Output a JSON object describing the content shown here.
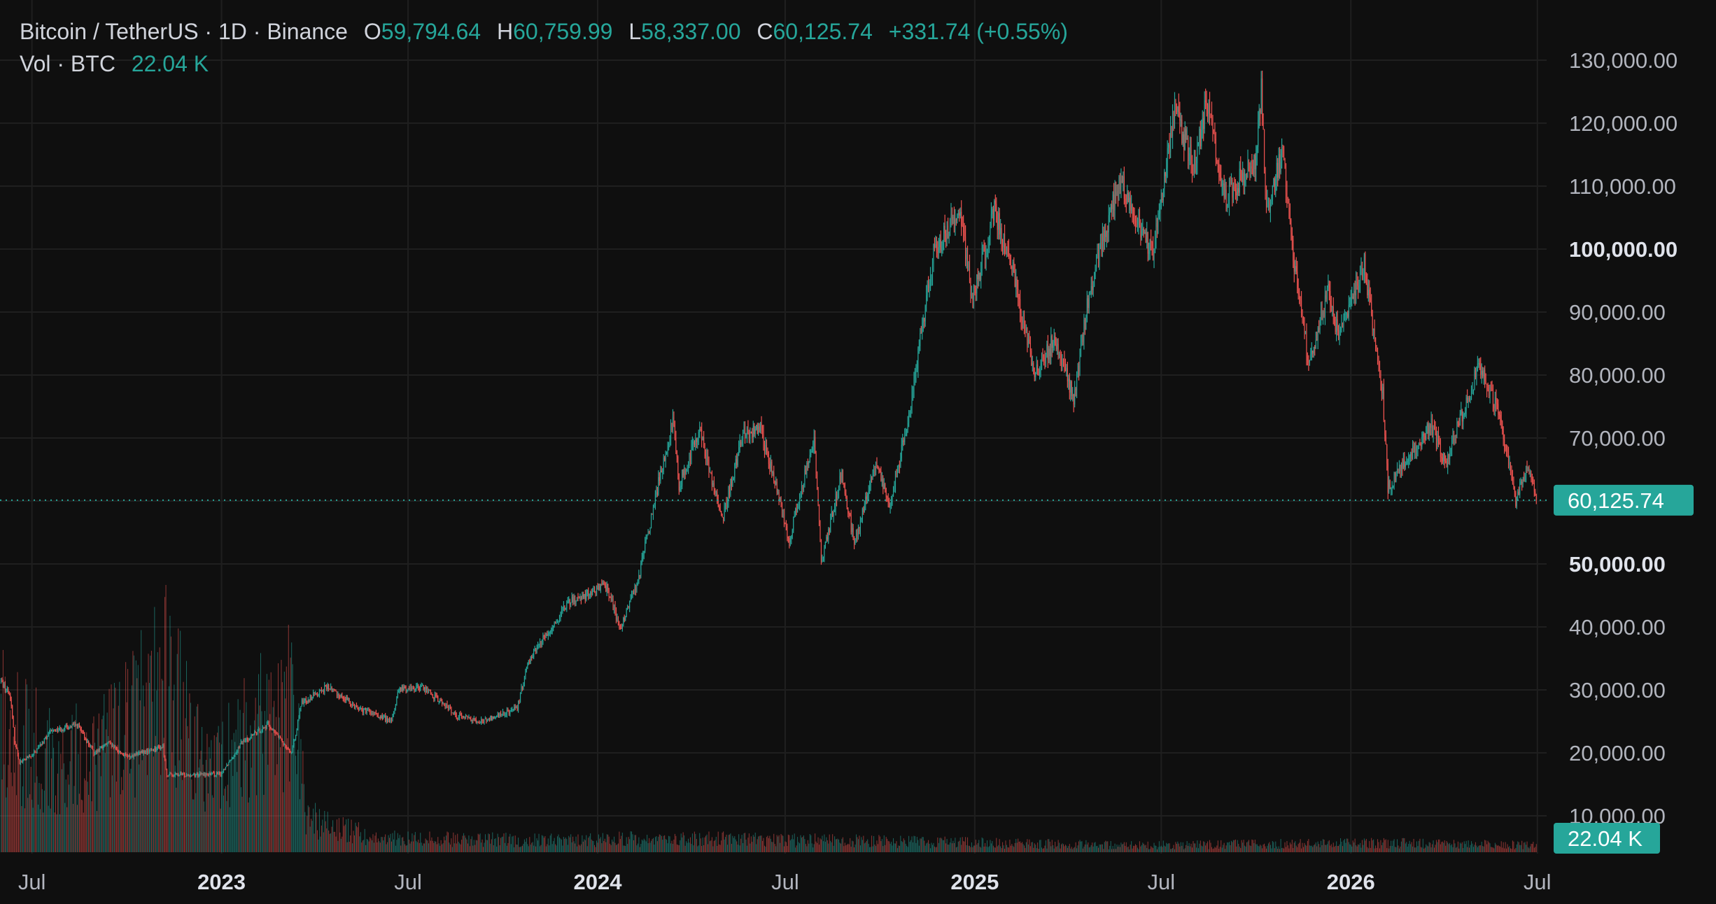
{
  "header": {
    "symbol": "Bitcoin / TetherUS · 1D · Binance",
    "o_label": "O",
    "o_value": "59,794.64",
    "h_label": "H",
    "h_value": "60,759.99",
    "l_label": "L",
    "l_value": "58,337.00",
    "c_label": "C",
    "c_value": "60,125.74",
    "change": "+331.74 (+0.55%)",
    "vol_label": "Vol · BTC",
    "vol_value": "22.04 K"
  },
  "colors": {
    "background": "#0f0f0f",
    "grid": "#1f1f1f",
    "up": "#26a69a",
    "down": "#ef5350",
    "badge": "#26a69a",
    "text": "#b2b5be"
  },
  "chart_data": {
    "type": "candlestick",
    "title": "Bitcoin / TetherUS · 1D · Binance",
    "y_scale": "linear",
    "ylim": [
      5000,
      135000
    ],
    "y_ticks": [
      {
        "value": 130000,
        "label": "130,000.00",
        "bold": false
      },
      {
        "value": 120000,
        "label": "120,000.00",
        "bold": false
      },
      {
        "value": 110000,
        "label": "110,000.00",
        "bold": false
      },
      {
        "value": 100000,
        "label": "100,000.00",
        "bold": true
      },
      {
        "value": 90000,
        "label": "90,000.00",
        "bold": false
      },
      {
        "value": 80000,
        "label": "80,000.00",
        "bold": false
      },
      {
        "value": 70000,
        "label": "70,000.00",
        "bold": false
      },
      {
        "value": 50000,
        "label": "50,000.00",
        "bold": true
      },
      {
        "value": 40000,
        "label": "40,000.00",
        "bold": false
      },
      {
        "value": 30000,
        "label": "30,000.00",
        "bold": false
      },
      {
        "value": 20000,
        "label": "20,000.00",
        "bold": false
      },
      {
        "value": 10000,
        "label": "10,000.00",
        "bold": false
      }
    ],
    "x_range": [
      "2022-05-31",
      "2026-07-10"
    ],
    "x_ticks": [
      {
        "date": "2022-07-01",
        "label": "Jul",
        "bold": false
      },
      {
        "date": "2023-01-01",
        "label": "2023",
        "bold": true
      },
      {
        "date": "2023-07-01",
        "label": "Jul",
        "bold": false
      },
      {
        "date": "2024-01-01",
        "label": "2024",
        "bold": true
      },
      {
        "date": "2024-07-01",
        "label": "Jul",
        "bold": false
      },
      {
        "date": "2025-01-01",
        "label": "2025",
        "bold": true
      },
      {
        "date": "2025-07-01",
        "label": "Jul",
        "bold": false
      },
      {
        "date": "2026-01-01",
        "label": "2026",
        "bold": true
      },
      {
        "date": "2026-07-01",
        "label": "Jul",
        "bold": false
      }
    ],
    "last_price": {
      "value": 60125.74,
      "label": "60,125.74"
    },
    "last_volume": {
      "label": "22.04 K"
    },
    "price_path": [
      [
        "2022-06-01",
        31500
      ],
      [
        "2022-06-10",
        29000
      ],
      [
        "2022-06-14",
        22000
      ],
      [
        "2022-06-19",
        18500
      ],
      [
        "2022-07-01",
        19500
      ],
      [
        "2022-07-20",
        23500
      ],
      [
        "2022-08-14",
        24500
      ],
      [
        "2022-08-30",
        20000
      ],
      [
        "2022-09-13",
        21500
      ],
      [
        "2022-10-01",
        19300
      ],
      [
        "2022-11-05",
        21000
      ],
      [
        "2022-11-09",
        16500
      ],
      [
        "2022-12-31",
        16600
      ],
      [
        "2023-01-20",
        21500
      ],
      [
        "2023-02-15",
        24500
      ],
      [
        "2023-03-10",
        20000
      ],
      [
        "2023-03-20",
        28000
      ],
      [
        "2023-04-14",
        30500
      ],
      [
        "2023-05-15",
        27000
      ],
      [
        "2023-06-15",
        25000
      ],
      [
        "2023-06-22",
        30000
      ],
      [
        "2023-07-15",
        30500
      ],
      [
        "2023-08-17",
        26000
      ],
      [
        "2023-09-11",
        25000
      ],
      [
        "2023-10-15",
        27000
      ],
      [
        "2023-10-25",
        34500
      ],
      [
        "2023-12-05",
        44000
      ],
      [
        "2024-01-10",
        46500
      ],
      [
        "2024-01-23",
        39500
      ],
      [
        "2024-02-10",
        48000
      ],
      [
        "2024-02-28",
        62000
      ],
      [
        "2024-03-14",
        73000
      ],
      [
        "2024-03-20",
        62500
      ],
      [
        "2024-04-08",
        71500
      ],
      [
        "2024-05-01",
        57000
      ],
      [
        "2024-05-21",
        71000
      ],
      [
        "2024-06-07",
        71500
      ],
      [
        "2024-07-05",
        54000
      ],
      [
        "2024-07-29",
        70000
      ],
      [
        "2024-08-05",
        50000
      ],
      [
        "2024-08-25",
        64500
      ],
      [
        "2024-09-06",
        53000
      ],
      [
        "2024-09-27",
        66000
      ],
      [
        "2024-10-10",
        59000
      ],
      [
        "2024-10-29",
        73000
      ],
      [
        "2024-11-13",
        90000
      ],
      [
        "2024-11-22",
        99000
      ],
      [
        "2024-12-17",
        106500
      ],
      [
        "2024-12-30",
        92000
      ],
      [
        "2025-01-20",
        106000
      ],
      [
        "2025-02-05",
        98000
      ],
      [
        "2025-02-28",
        80000
      ],
      [
        "2025-03-20",
        86000
      ],
      [
        "2025-04-07",
        76000
      ],
      [
        "2025-04-22",
        93000
      ],
      [
        "2025-05-22",
        111000
      ],
      [
        "2025-06-22",
        99000
      ],
      [
        "2025-07-14",
        122000
      ],
      [
        "2025-08-02",
        113000
      ],
      [
        "2025-08-14",
        123500
      ],
      [
        "2025-09-01",
        108000
      ],
      [
        "2025-09-30",
        114000
      ],
      [
        "2025-10-06",
        125500
      ],
      [
        "2025-10-11",
        105000
      ],
      [
        "2025-10-27",
        116000
      ],
      [
        "2025-11-05",
        100000
      ],
      [
        "2025-11-21",
        82000
      ],
      [
        "2025-12-10",
        93000
      ],
      [
        "2025-12-20",
        86000
      ],
      [
        "2026-01-14",
        97500
      ],
      [
        "2026-02-01",
        77000
      ],
      [
        "2026-02-06",
        62000
      ],
      [
        "2026-02-25",
        67000
      ],
      [
        "2026-03-20",
        72000
      ],
      [
        "2026-04-03",
        66000
      ],
      [
        "2026-05-05",
        81500
      ],
      [
        "2026-05-25",
        74000
      ],
      [
        "2026-06-10",
        60000
      ],
      [
        "2026-06-22",
        66000
      ],
      [
        "2026-06-30",
        60126
      ]
    ],
    "volume_ylim": [
      0,
      85000
    ],
    "volume_path": [
      [
        "2022-06-01",
        55000
      ],
      [
        "2022-06-20",
        48000
      ],
      [
        "2022-07-15",
        42000
      ],
      [
        "2022-09-01",
        40000
      ],
      [
        "2022-11-10",
        75000
      ],
      [
        "2022-12-20",
        30000
      ],
      [
        "2023-01-15",
        45000
      ],
      [
        "2023-03-10",
        65000
      ],
      [
        "2023-03-25",
        15000
      ],
      [
        "2023-06-01",
        6000
      ],
      [
        "2023-12-01",
        5000
      ],
      [
        "2024-03-10",
        6000
      ],
      [
        "2024-08-05",
        5000
      ],
      [
        "2025-06-01",
        3000
      ],
      [
        "2026-02-06",
        4000
      ],
      [
        "2026-06-30",
        3000
      ]
    ]
  }
}
